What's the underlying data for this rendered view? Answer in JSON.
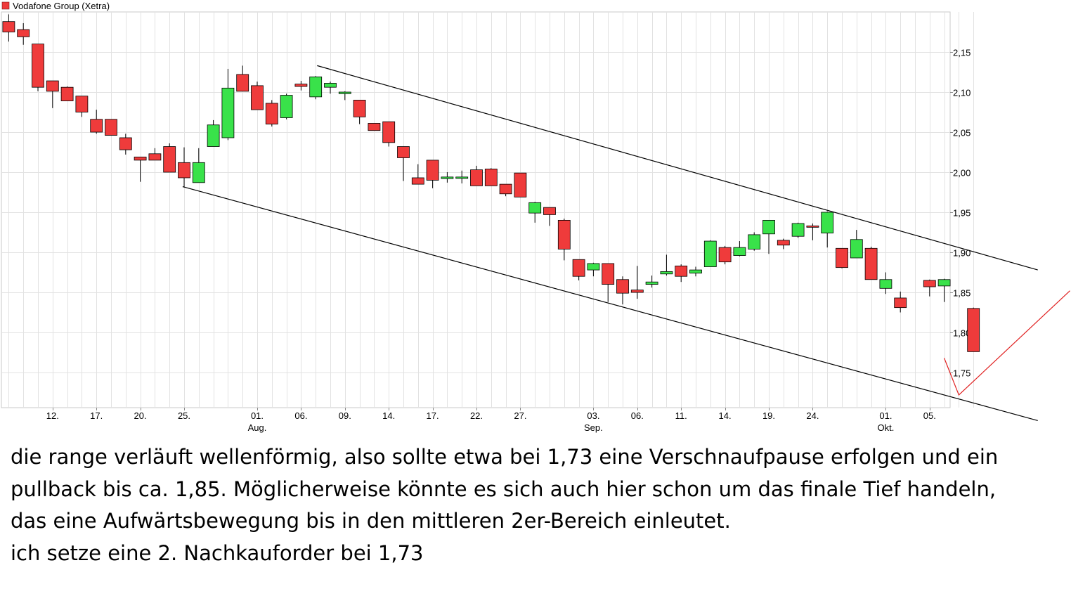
{
  "chart_data": {
    "type": "candlestick",
    "title": "Vodafone Group (Xetra)",
    "legend": {
      "label": "Vodafone Group (Xetra)",
      "color": "#ef3b3b",
      "position": "top-left"
    },
    "colors": {
      "up": "#39e24a",
      "down": "#ef3b3b",
      "wick": "#000000",
      "grid": "#e2e2e2",
      "channel": "#000000",
      "projection": "#e02020"
    },
    "ylim": [
      1.7,
      2.2
    ],
    "y_ticks": [
      "2,15",
      "2,10",
      "2,05",
      "2,00",
      "1,95",
      "1,90",
      "1,85",
      "1,80",
      "1,75"
    ],
    "y_tick_values": [
      2.15,
      2.1,
      2.05,
      2.0,
      1.95,
      1.9,
      1.85,
      1.8,
      1.75
    ],
    "y_axis_side": "right",
    "grid": true,
    "x_ticks": [
      {
        "label": "12.",
        "index": 3
      },
      {
        "label": "17.",
        "index": 6
      },
      {
        "label": "20.",
        "index": 9
      },
      {
        "label": "25.",
        "index": 12
      },
      {
        "label": "01.",
        "month": "Aug.",
        "index": 17
      },
      {
        "label": "06.",
        "index": 20
      },
      {
        "label": "09.",
        "index": 23
      },
      {
        "label": "14.",
        "index": 26
      },
      {
        "label": "17.",
        "index": 29
      },
      {
        "label": "22.",
        "index": 32
      },
      {
        "label": "27.",
        "index": 35
      },
      {
        "label": "03.",
        "month": "Sep.",
        "index": 40
      },
      {
        "label": "06.",
        "index": 43
      },
      {
        "label": "11.",
        "index": 46
      },
      {
        "label": "14.",
        "index": 49
      },
      {
        "label": "19.",
        "index": 52
      },
      {
        "label": "24.",
        "index": 55
      },
      {
        "label": "01.",
        "month": "Okt.",
        "index": 60
      },
      {
        "label": "05.",
        "index": 63
      }
    ],
    "candles": [
      {
        "o": 2.188,
        "h": 2.197,
        "c": 2.175,
        "l": 2.163
      },
      {
        "o": 2.178,
        "h": 2.186,
        "c": 2.169,
        "l": 2.159
      },
      {
        "o": 2.16,
        "h": 2.16,
        "c": 2.106,
        "l": 2.101
      },
      {
        "o": 2.114,
        "h": 2.114,
        "c": 2.101,
        "l": 2.08
      },
      {
        "o": 2.106,
        "h": 2.107,
        "c": 2.089,
        "l": 2.089
      },
      {
        "o": 2.095,
        "h": 2.095,
        "c": 2.075,
        "l": 2.069
      },
      {
        "o": 2.066,
        "h": 2.078,
        "c": 2.05,
        "l": 2.048
      },
      {
        "o": 2.066,
        "h": 2.066,
        "c": 2.046,
        "l": 2.046
      },
      {
        "o": 2.043,
        "h": 2.048,
        "c": 2.028,
        "l": 2.022
      },
      {
        "o": 2.019,
        "h": 2.019,
        "c": 2.015,
        "l": 1.988
      },
      {
        "o": 2.023,
        "h": 2.03,
        "c": 2.015,
        "l": 2.015
      },
      {
        "o": 2.032,
        "h": 2.036,
        "c": 2.0,
        "l": 2.0
      },
      {
        "o": 2.012,
        "h": 2.031,
        "c": 1.993,
        "l": 1.981
      },
      {
        "o": 1.987,
        "h": 2.03,
        "c": 2.012,
        "l": 1.987
      },
      {
        "o": 2.032,
        "h": 2.065,
        "c": 2.059,
        "l": 2.032
      },
      {
        "o": 2.043,
        "h": 2.129,
        "c": 2.105,
        "l": 2.04
      },
      {
        "o": 2.122,
        "h": 2.133,
        "c": 2.101,
        "l": 2.101
      },
      {
        "o": 2.108,
        "h": 2.113,
        "c": 2.078,
        "l": 2.078
      },
      {
        "o": 2.086,
        "h": 2.09,
        "c": 2.06,
        "l": 2.057
      },
      {
        "o": 2.068,
        "h": 2.098,
        "c": 2.096,
        "l": 2.066
      },
      {
        "o": 2.11,
        "h": 2.114,
        "c": 2.107,
        "l": 2.102
      },
      {
        "o": 2.094,
        "h": 2.12,
        "c": 2.119,
        "l": 2.091
      },
      {
        "o": 2.106,
        "h": 2.113,
        "c": 2.111,
        "l": 2.098
      },
      {
        "o": 2.098,
        "h": 2.101,
        "c": 2.1,
        "l": 2.09
      },
      {
        "o": 2.09,
        "h": 2.09,
        "c": 2.069,
        "l": 2.06
      },
      {
        "o": 2.061,
        "h": 2.061,
        "c": 2.052,
        "l": 2.052
      },
      {
        "o": 2.063,
        "h": 2.063,
        "c": 2.037,
        "l": 2.032
      },
      {
        "o": 2.032,
        "h": 2.032,
        "c": 2.018,
        "l": 1.989
      },
      {
        "o": 1.993,
        "h": 2.01,
        "c": 1.985,
        "l": 1.985
      },
      {
        "o": 2.015,
        "h": 2.015,
        "c": 1.99,
        "l": 1.98
      },
      {
        "o": 1.992,
        "h": 2.0,
        "c": 1.994,
        "l": 1.987
      },
      {
        "o": 1.993,
        "h": 2.002,
        "c": 1.994,
        "l": 1.986
      },
      {
        "o": 2.003,
        "h": 2.008,
        "c": 1.983,
        "l": 1.983
      },
      {
        "o": 2.004,
        "h": 2.005,
        "c": 1.983,
        "l": 1.983
      },
      {
        "o": 1.985,
        "h": 1.985,
        "c": 1.973,
        "l": 1.97
      },
      {
        "o": 1.999,
        "h": 1.999,
        "c": 1.969,
        "l": 1.969
      },
      {
        "o": 1.949,
        "h": 1.963,
        "c": 1.962,
        "l": 1.937
      },
      {
        "o": 1.956,
        "h": 1.956,
        "c": 1.947,
        "l": 1.933
      },
      {
        "o": 1.94,
        "h": 1.942,
        "c": 1.904,
        "l": 1.89
      },
      {
        "o": 1.891,
        "h": 1.891,
        "c": 1.87,
        "l": 1.865
      },
      {
        "o": 1.878,
        "h": 1.887,
        "c": 1.886,
        "l": 1.87
      },
      {
        "o": 1.886,
        "h": 1.886,
        "c": 1.86,
        "l": 1.838
      },
      {
        "o": 1.866,
        "h": 1.87,
        "c": 1.849,
        "l": 1.835
      },
      {
        "o": 1.853,
        "h": 1.883,
        "c": 1.85,
        "l": 1.842
      },
      {
        "o": 1.86,
        "h": 1.871,
        "c": 1.863,
        "l": 1.856
      },
      {
        "o": 1.873,
        "h": 1.897,
        "c": 1.876,
        "l": 1.871
      },
      {
        "o": 1.883,
        "h": 1.885,
        "c": 1.87,
        "l": 1.863
      },
      {
        "o": 1.874,
        "h": 1.882,
        "c": 1.878,
        "l": 1.87
      },
      {
        "o": 1.882,
        "h": 1.915,
        "c": 1.914,
        "l": 1.882
      },
      {
        "o": 1.906,
        "h": 1.908,
        "c": 1.888,
        "l": 1.885
      },
      {
        "o": 1.896,
        "h": 1.914,
        "c": 1.906,
        "l": 1.895
      },
      {
        "o": 1.904,
        "h": 1.925,
        "c": 1.922,
        "l": 1.902
      },
      {
        "o": 1.923,
        "h": 1.94,
        "c": 1.94,
        "l": 1.898
      },
      {
        "o": 1.915,
        "h": 1.917,
        "c": 1.909,
        "l": 1.904
      },
      {
        "o": 1.92,
        "h": 1.937,
        "c": 1.936,
        "l": 1.918
      },
      {
        "o": 1.933,
        "h": 1.936,
        "c": 1.932,
        "l": 1.915
      },
      {
        "o": 1.924,
        "h": 1.951,
        "c": 1.95,
        "l": 1.906
      },
      {
        "o": 1.905,
        "h": 1.905,
        "c": 1.881,
        "l": 1.88
      },
      {
        "o": 1.893,
        "h": 1.928,
        "c": 1.916,
        "l": 1.893
      },
      {
        "o": 1.905,
        "h": 1.907,
        "c": 1.866,
        "l": 1.866
      },
      {
        "o": 1.855,
        "h": 1.875,
        "c": 1.866,
        "l": 1.848
      },
      {
        "o": 1.843,
        "h": 1.851,
        "c": 1.831,
        "l": 1.825
      },
      {
        "o": null,
        "h": null,
        "c": null,
        "l": null
      },
      {
        "o": 1.865,
        "h": 1.866,
        "c": 1.857,
        "l": 1.845
      },
      {
        "o": 1.858,
        "h": 1.867,
        "c": 1.866,
        "l": 1.838
      },
      {
        "o": null,
        "h": null,
        "c": null,
        "l": null
      },
      {
        "o": 1.83,
        "h": 1.831,
        "c": 1.776,
        "l": 1.776
      }
    ],
    "annotations": {
      "channel_lines": [
        {
          "from": {
            "index": 21.1,
            "value": 2.133
          },
          "to": {
            "index": 70.4,
            "value": 1.878
          }
        },
        {
          "from": {
            "index": 11.9,
            "value": 1.982
          },
          "to": {
            "index": 70.4,
            "value": 1.69
          }
        }
      ],
      "projection_line": [
        {
          "index": 64.0,
          "value": 1.768
        },
        {
          "index": 65.0,
          "value": 1.722
        },
        {
          "index": 72.6,
          "value": 1.852
        }
      ]
    }
  },
  "caption": {
    "lines": [
      "die range verläuft wellenförmig, also sollte etwa bei 1,73 eine Verschnaufpause erfolgen und ein",
      "pullback bis ca. 1,85. Möglicherweise könnte es sich auch hier schon um das finale Tief handeln,",
      "das eine Aufwärtsbewegung bis in den mittleren 2er-Bereich einleutet.",
      "ich setze eine 2. Nachkauforder bei 1,73"
    ]
  }
}
